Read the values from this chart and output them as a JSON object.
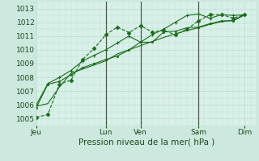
{
  "background_color": "#cde8de",
  "plot_bg_color": "#d8f0e8",
  "grid_color": "#b8ddd0",
  "line_color": "#1a6b1a",
  "x_ticks_labels": [
    "Jeu",
    "Lun",
    "Ven",
    "Sam",
    "Dim"
  ],
  "x_ticks_pos": [
    0.0,
    0.33,
    0.5,
    0.78,
    1.0
  ],
  "xlabel": "Pression niveau de la mer( hPa )",
  "ylim": [
    1004.5,
    1013.5
  ],
  "yticks": [
    1005,
    1006,
    1007,
    1008,
    1009,
    1010,
    1011,
    1012,
    1013
  ],
  "xlim": [
    0,
    19
  ],
  "vlines_x": [
    6,
    9,
    14
  ],
  "total_x": 18,
  "series1_x": [
    0,
    1,
    2,
    3,
    4,
    5,
    6,
    7,
    8,
    9,
    10,
    11,
    12,
    13,
    14,
    15,
    16,
    17,
    18
  ],
  "series1_y": [
    1005.1,
    1005.3,
    1007.5,
    1007.8,
    1009.3,
    1010.1,
    1011.1,
    1011.65,
    1011.25,
    1011.75,
    1011.3,
    1011.4,
    1011.1,
    1011.5,
    1012.1,
    1012.55,
    1012.55,
    1012.3,
    1012.55
  ],
  "series2_x": [
    0,
    1,
    2,
    3,
    4,
    5,
    6,
    7,
    8,
    9,
    10,
    11,
    12,
    13,
    14,
    15,
    16,
    17,
    18
  ],
  "series2_y": [
    1006.0,
    1007.55,
    1008.0,
    1008.5,
    1009.2,
    1009.6,
    1010.0,
    1010.5,
    1011.0,
    1010.55,
    1011.1,
    1011.5,
    1012.0,
    1012.5,
    1012.6,
    1012.3,
    1012.55,
    1012.5,
    1012.55
  ],
  "series3_x": [
    0,
    1,
    2,
    3,
    4,
    5,
    6,
    7,
    8,
    9,
    10,
    11,
    12,
    13,
    14,
    15,
    16,
    17,
    18
  ],
  "series3_y": [
    1005.8,
    1007.5,
    1007.7,
    1008.2,
    1008.7,
    1009.0,
    1009.3,
    1009.55,
    1010.0,
    1010.55,
    1010.55,
    1011.3,
    1011.35,
    1011.6,
    1011.65,
    1011.9,
    1012.1,
    1012.1,
    1012.55
  ],
  "series4_x": [
    0,
    1,
    2,
    3,
    4,
    5,
    6,
    7,
    8,
    9,
    10,
    11,
    12,
    13,
    14,
    15,
    16,
    17,
    18
  ],
  "series4_y": [
    1005.9,
    1006.1,
    1007.3,
    1008.3,
    1008.6,
    1008.9,
    1009.2,
    1009.7,
    1010.0,
    1010.3,
    1010.6,
    1010.9,
    1011.15,
    1011.4,
    1011.6,
    1011.85,
    1012.05,
    1012.15,
    1012.55
  ]
}
